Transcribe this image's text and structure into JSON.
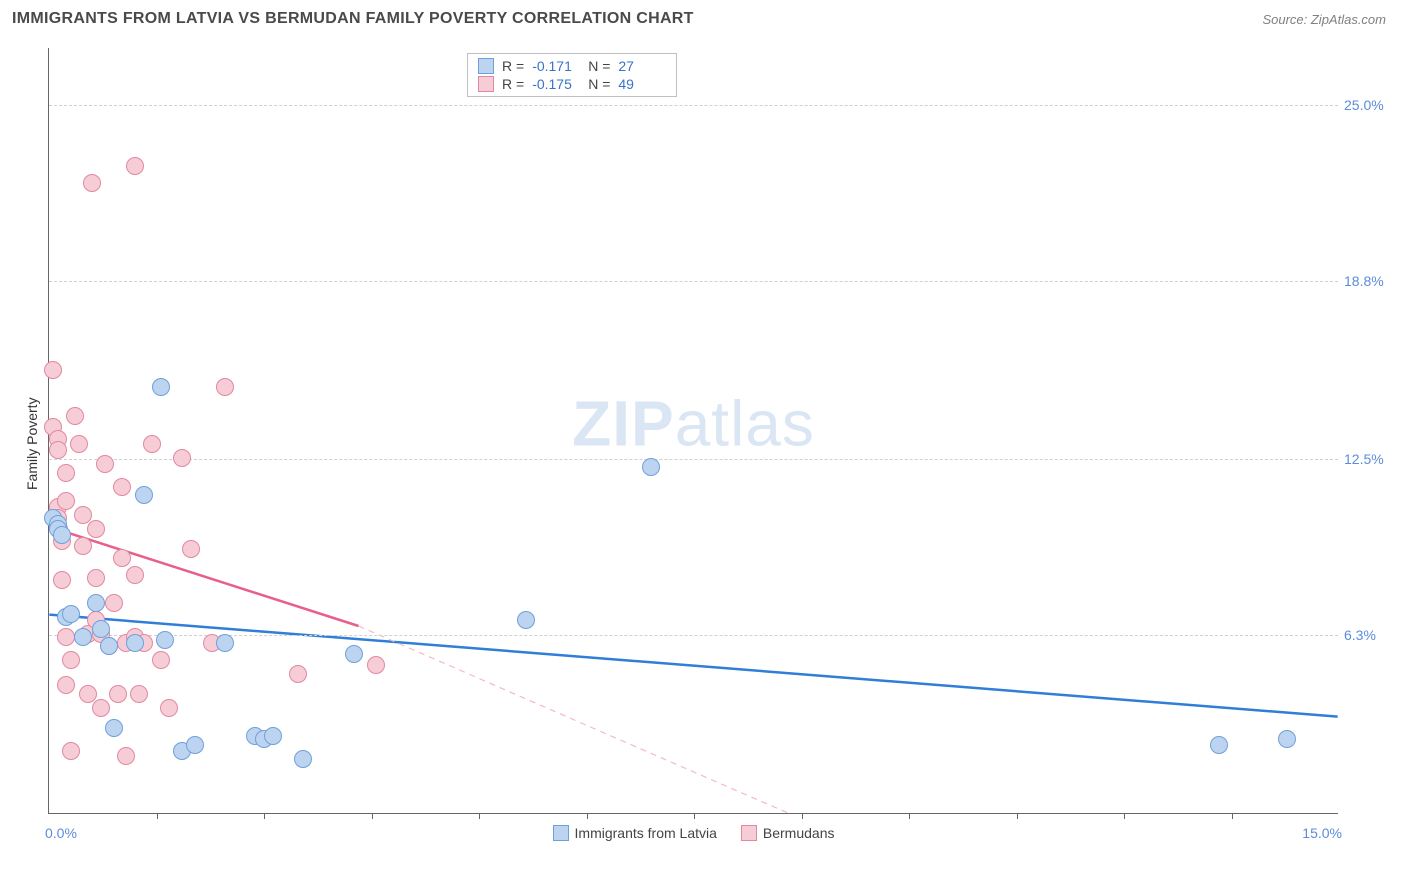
{
  "header": {
    "title": "IMMIGRANTS FROM LATVIA VS BERMUDAN FAMILY POVERTY CORRELATION CHART",
    "source_prefix": "Source: ",
    "source_name": "ZipAtlas.com"
  },
  "watermark": {
    "bold": "ZIP",
    "rest": "atlas",
    "color": "#dbe6f4"
  },
  "chart": {
    "type": "scatter",
    "background_color": "#ffffff",
    "grid_color": "#d0d0d0",
    "axis_color": "#666666",
    "ylabel": "Family Poverty",
    "ylabel_fontsize": 14,
    "xlim": [
      0,
      15
    ],
    "ylim": [
      0,
      27
    ],
    "point_radius": 9,
    "point_stroke_width": 1,
    "y_ticks": [
      {
        "v": 6.3,
        "label": "6.3%"
      },
      {
        "v": 12.5,
        "label": "12.5%"
      },
      {
        "v": 18.8,
        "label": "18.8%"
      },
      {
        "v": 25.0,
        "label": "25.0%"
      }
    ],
    "x_ticks_minor": [
      1.25,
      2.5,
      3.75,
      5.0,
      6.25,
      7.5,
      8.75,
      10.0,
      11.25,
      12.5,
      13.75
    ],
    "x_min_label": "0.0%",
    "x_max_label": "15.0%",
    "tick_label_color": "#5b8cd9",
    "series": [
      {
        "key": "latvia",
        "label": "Immigrants from Latvia",
        "fill": "#bcd4ef",
        "stroke": "#6fa0db",
        "trend_color": "#2f7ed8",
        "trend_width": 2.5,
        "trend_dash": "none",
        "trend": {
          "x1": 0,
          "y1": 7.0,
          "x2": 15,
          "y2": 3.4
        },
        "points": [
          [
            0.05,
            10.4
          ],
          [
            0.1,
            10.2
          ],
          [
            0.1,
            10.0
          ],
          [
            0.15,
            9.8
          ],
          [
            0.2,
            6.9
          ],
          [
            0.25,
            7.0
          ],
          [
            0.4,
            6.2
          ],
          [
            0.55,
            7.4
          ],
          [
            0.6,
            6.5
          ],
          [
            0.7,
            5.9
          ],
          [
            0.75,
            3.0
          ],
          [
            1.0,
            6.0
          ],
          [
            1.1,
            11.2
          ],
          [
            1.3,
            15.0
          ],
          [
            1.35,
            6.1
          ],
          [
            1.55,
            2.2
          ],
          [
            1.7,
            2.4
          ],
          [
            2.05,
            6.0
          ],
          [
            2.4,
            2.7
          ],
          [
            2.5,
            2.6
          ],
          [
            2.6,
            2.7
          ],
          [
            2.95,
            1.9
          ],
          [
            3.55,
            5.6
          ],
          [
            5.55,
            6.8
          ],
          [
            7.0,
            12.2
          ],
          [
            13.6,
            2.4
          ],
          [
            14.4,
            2.6
          ]
        ]
      },
      {
        "key": "bermudans",
        "label": "Bermudans",
        "fill": "#f6cdd6",
        "stroke": "#e288a0",
        "trend_color": "#e85f8a",
        "trend_width": 2.5,
        "trend_dash": "none",
        "trend": {
          "x1": 0,
          "y1": 10.1,
          "x2": 3.6,
          "y2": 6.6
        },
        "trend_dashed_color": "#f3b9c8",
        "trend_dashed": {
          "x1": 3.6,
          "y1": 6.6,
          "x2": 8.6,
          "y2": 0
        },
        "points": [
          [
            0.05,
            15.6
          ],
          [
            0.05,
            13.6
          ],
          [
            0.1,
            13.2
          ],
          [
            0.1,
            12.8
          ],
          [
            0.1,
            10.8
          ],
          [
            0.1,
            10.4
          ],
          [
            0.12,
            10.0
          ],
          [
            0.15,
            9.6
          ],
          [
            0.15,
            8.2
          ],
          [
            0.2,
            12.0
          ],
          [
            0.2,
            11.0
          ],
          [
            0.2,
            6.2
          ],
          [
            0.2,
            4.5
          ],
          [
            0.25,
            5.4
          ],
          [
            0.25,
            2.2
          ],
          [
            0.3,
            14.0
          ],
          [
            0.35,
            13.0
          ],
          [
            0.4,
            10.5
          ],
          [
            0.4,
            9.4
          ],
          [
            0.45,
            6.3
          ],
          [
            0.45,
            4.2
          ],
          [
            0.5,
            22.2
          ],
          [
            0.55,
            10.0
          ],
          [
            0.55,
            8.3
          ],
          [
            0.55,
            6.8
          ],
          [
            0.6,
            6.3
          ],
          [
            0.6,
            3.7
          ],
          [
            0.65,
            12.3
          ],
          [
            0.7,
            5.9
          ],
          [
            0.75,
            7.4
          ],
          [
            0.8,
            4.2
          ],
          [
            0.85,
            11.5
          ],
          [
            0.85,
            9.0
          ],
          [
            0.9,
            6.0
          ],
          [
            0.9,
            2.0
          ],
          [
            1.0,
            22.8
          ],
          [
            1.0,
            8.4
          ],
          [
            1.0,
            6.2
          ],
          [
            1.05,
            4.2
          ],
          [
            1.1,
            6.0
          ],
          [
            1.2,
            13.0
          ],
          [
            1.3,
            5.4
          ],
          [
            1.4,
            3.7
          ],
          [
            1.55,
            12.5
          ],
          [
            1.65,
            9.3
          ],
          [
            1.9,
            6.0
          ],
          [
            2.05,
            15.0
          ],
          [
            2.9,
            4.9
          ],
          [
            3.8,
            5.2
          ]
        ]
      }
    ],
    "stat_box": {
      "rows": [
        {
          "swatch_fill": "#bcd4ef",
          "swatch_stroke": "#6fa0db",
          "r_label": "R  =",
          "r_val": "-0.171",
          "n_label": "N  =",
          "n_val": "27"
        },
        {
          "swatch_fill": "#f6cdd6",
          "swatch_stroke": "#e288a0",
          "r_label": "R  =",
          "r_val": "-0.175",
          "n_label": "N  =",
          "n_val": "49"
        }
      ]
    }
  }
}
